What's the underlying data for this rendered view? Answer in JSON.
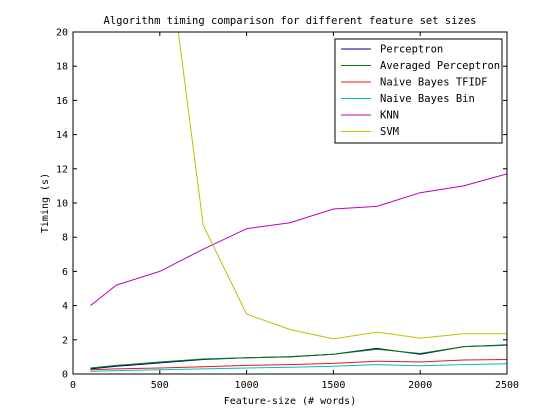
{
  "chart_data": {
    "type": "line",
    "title": "Algorithm timing comparison for different feature set sizes",
    "xlabel": "Feature-size (# words)",
    "ylabel": "Timing (s)",
    "xlim": [
      0,
      2500
    ],
    "ylim": [
      0,
      20
    ],
    "xticks": [
      0,
      500,
      1000,
      1500,
      2000,
      2500
    ],
    "yticks": [
      0,
      2,
      4,
      6,
      8,
      10,
      12,
      14,
      16,
      18,
      20
    ],
    "grid": false,
    "legend_position": "top-right",
    "x": [
      100,
      250,
      500,
      750,
      1000,
      1250,
      1500,
      1750,
      2000,
      2250,
      2500
    ],
    "series": [
      {
        "name": "Perceptron",
        "color": "#00008b",
        "values": [
          0.3,
          0.45,
          0.65,
          0.85,
          0.95,
          1.0,
          1.15,
          1.5,
          1.15,
          1.6,
          1.7
        ]
      },
      {
        "name": "Averaged Perceptron",
        "color": "#007f00",
        "values": [
          0.35,
          0.5,
          0.7,
          0.88,
          0.95,
          1.02,
          1.15,
          1.45,
          1.2,
          1.6,
          1.68
        ]
      },
      {
        "name": "Naive Bayes TFIDF",
        "color": "#e41a1c",
        "values": [
          0.25,
          0.3,
          0.35,
          0.42,
          0.5,
          0.55,
          0.62,
          0.75,
          0.7,
          0.82,
          0.85
        ]
      },
      {
        "name": "Naive Bayes Bin",
        "color": "#00bfbf",
        "values": [
          0.15,
          0.2,
          0.25,
          0.3,
          0.35,
          0.4,
          0.45,
          0.55,
          0.48,
          0.55,
          0.6
        ]
      },
      {
        "name": "KNN",
        "color": "#bf00bf",
        "values": [
          4.0,
          5.2,
          6.0,
          7.3,
          8.5,
          8.85,
          9.65,
          9.8,
          10.6,
          11.0,
          11.7
        ]
      },
      {
        "name": "SVM",
        "color": "#bfbf00",
        "x": [
          600,
          750,
          1000,
          1250,
          1500,
          1750,
          2000,
          2250,
          2500
        ],
        "values": [
          20.5,
          8.7,
          3.5,
          2.6,
          2.05,
          2.45,
          2.1,
          2.35,
          2.35
        ]
      }
    ]
  }
}
